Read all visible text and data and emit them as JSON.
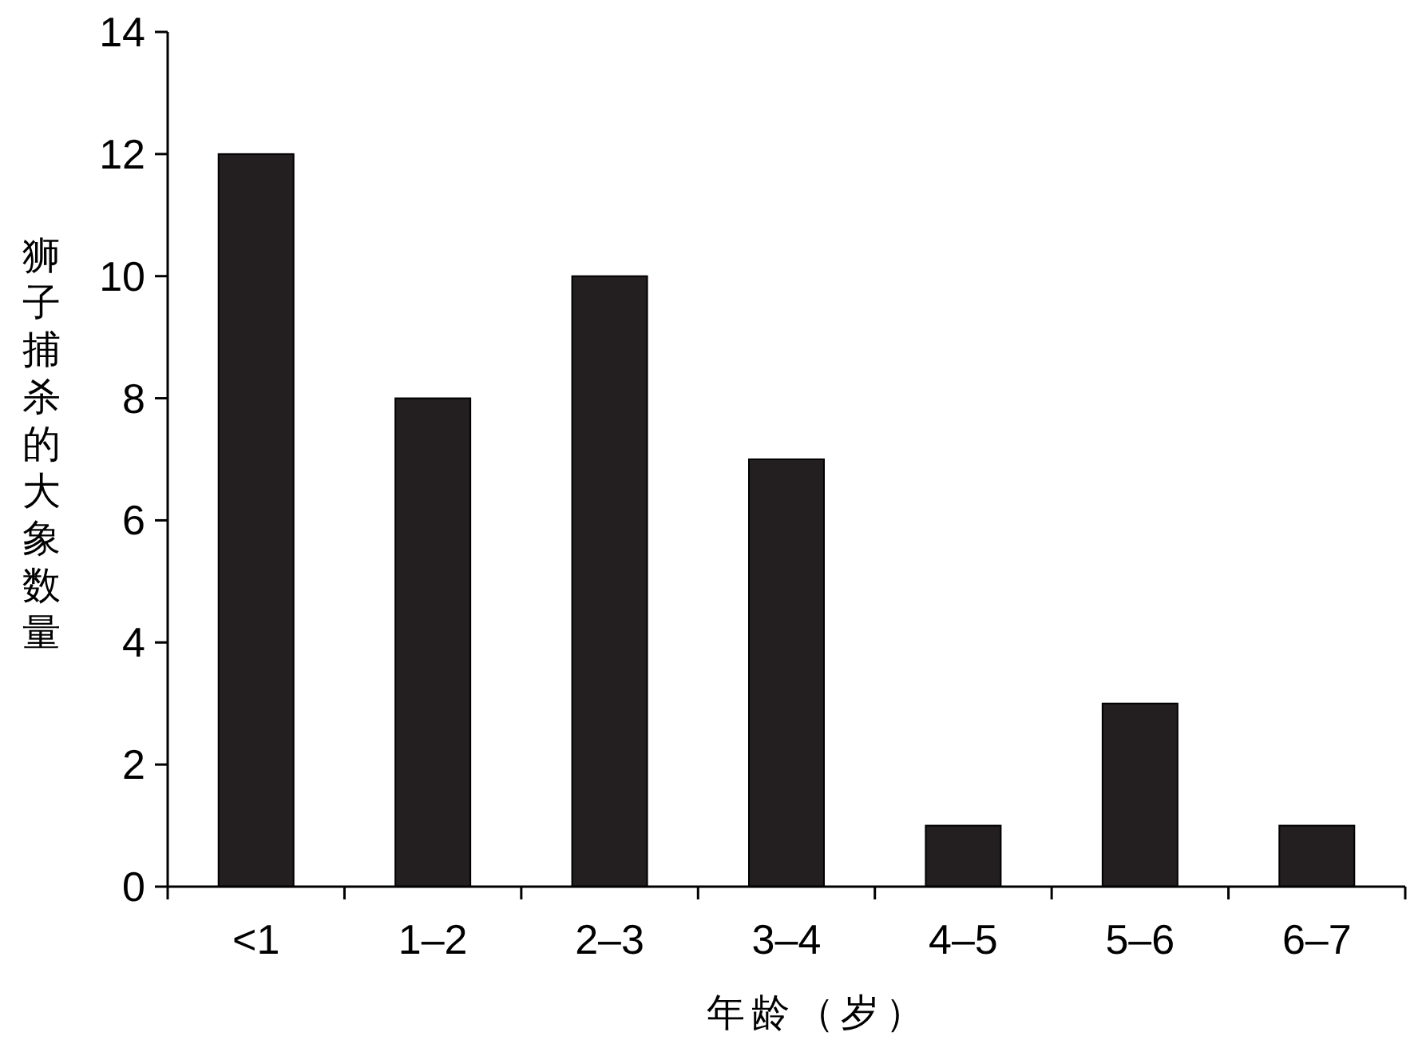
{
  "chart_data": {
    "type": "bar",
    "xlabel": "年龄（岁）",
    "ylabel": "狮子捕杀的大象数量",
    "categories": [
      "<1",
      "1–2",
      "2–3",
      "3–4",
      "4–5",
      "5–6",
      "6–7"
    ],
    "values": [
      12,
      8,
      10,
      7,
      1,
      3,
      1
    ],
    "color": "#231f20",
    "ylim": [
      0,
      14
    ],
    "yticks": [
      0,
      2,
      4,
      6,
      8,
      10,
      12,
      14
    ],
    "grid": false
  }
}
